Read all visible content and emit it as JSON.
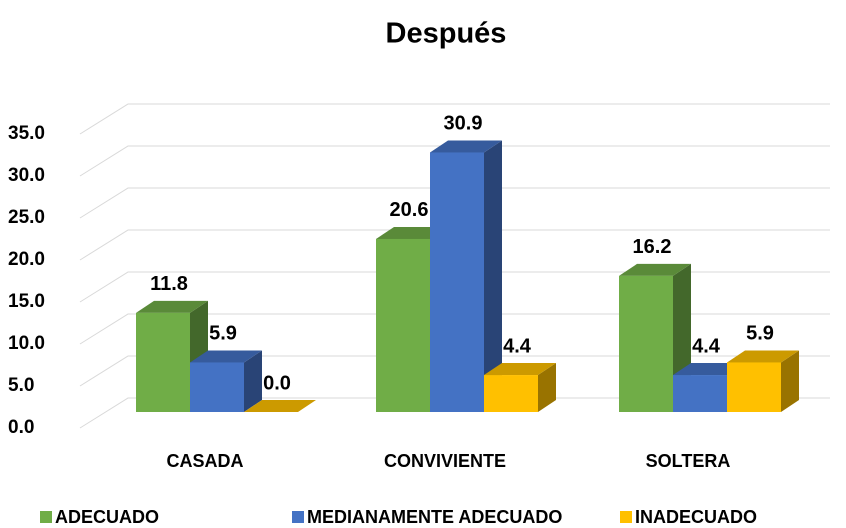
{
  "chart_data": {
    "type": "bar3d",
    "title": "Después",
    "categories": [
      "CASADA",
      "CONVIVIENTE",
      "SOLTERA"
    ],
    "series": [
      {
        "name": "ADECUADO",
        "color": "#70ad47",
        "values": [
          11.8,
          20.6,
          16.2
        ],
        "value_labels": [
          "11.8",
          "20.6",
          "16.2"
        ]
      },
      {
        "name": "MEDIANAMENTE ADECUADO",
        "color": "#4472c4",
        "values": [
          5.9,
          30.9,
          4.4
        ],
        "value_labels": [
          "5.9",
          "30.9",
          "4.4"
        ]
      },
      {
        "name": "INADECUADO",
        "color": "#ffc000",
        "values": [
          0,
          4.4,
          5.9
        ],
        "value_labels": [
          "0.0",
          "4.4",
          "5.9"
        ]
      }
    ],
    "ylim": [
      0,
      35
    ],
    "yticks": [
      {
        "value": 0,
        "label": "0.0"
      },
      {
        "value": 5,
        "label": "5.0"
      },
      {
        "value": 10,
        "label": "10.0"
      },
      {
        "value": 15,
        "label": "15.0"
      },
      {
        "value": 20,
        "label": "20.0"
      },
      {
        "value": 25,
        "label": "25.0"
      },
      {
        "value": 30,
        "label": "30.0"
      },
      {
        "value": 35,
        "label": "35.0"
      }
    ],
    "grid": true
  }
}
